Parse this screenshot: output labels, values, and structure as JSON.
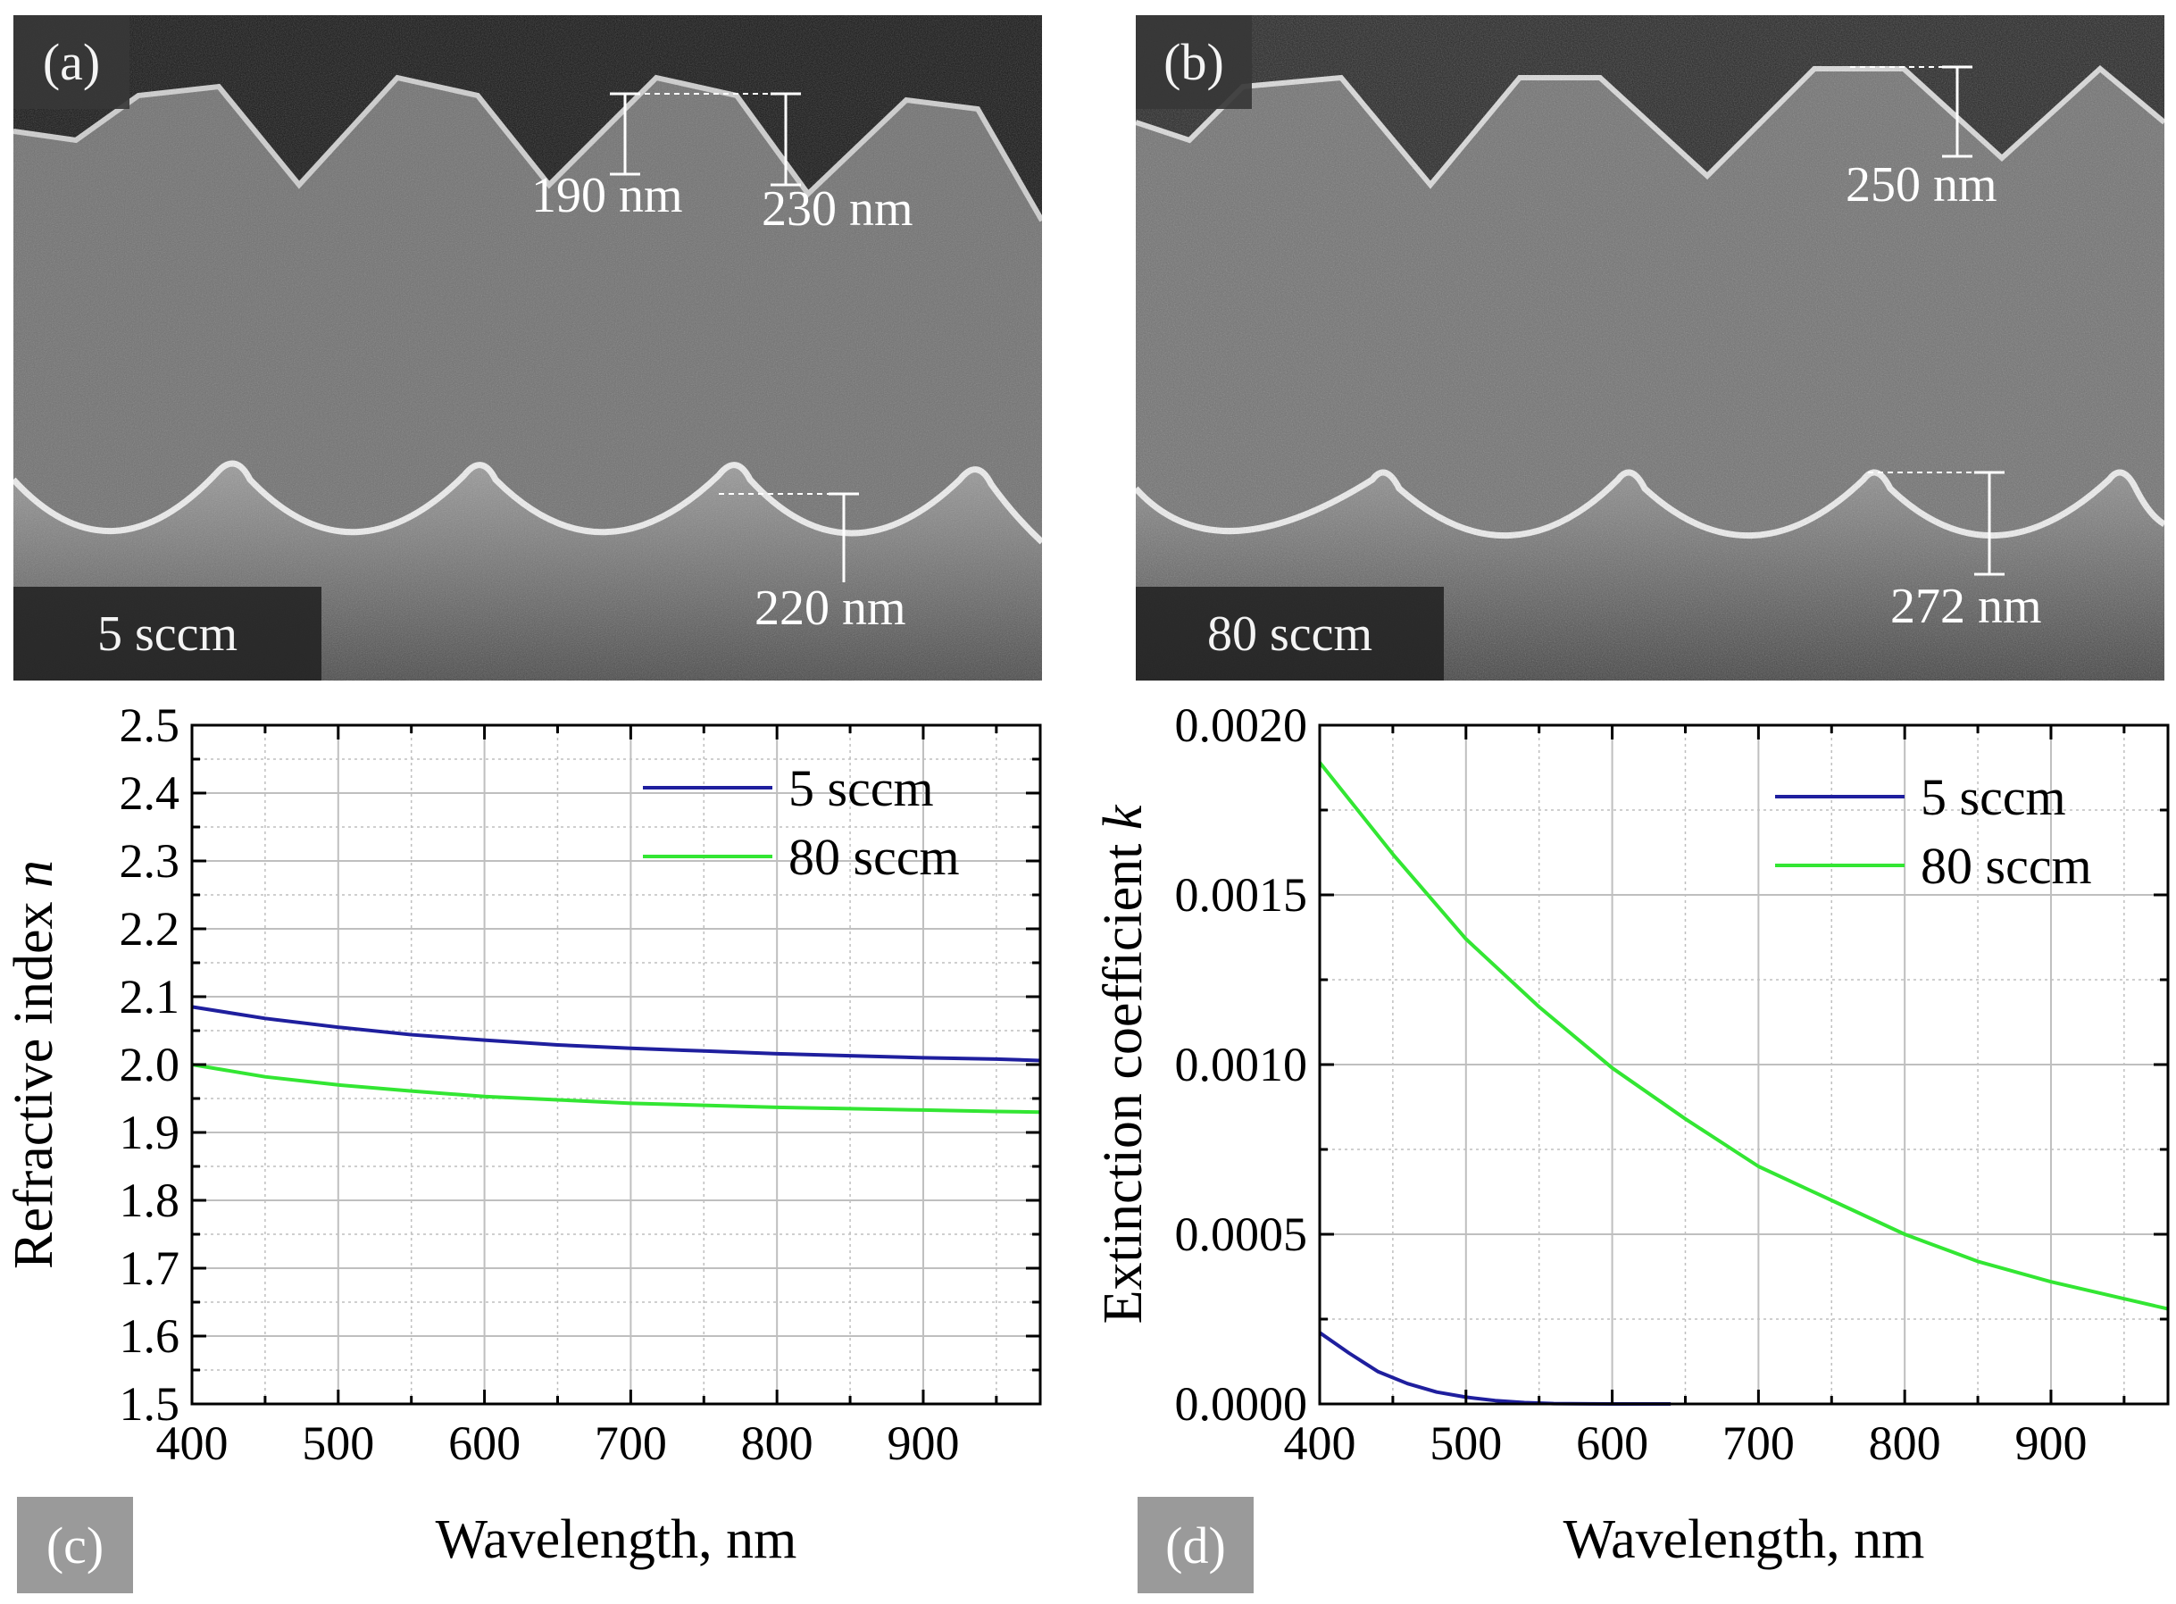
{
  "panels": {
    "a": {
      "label": "(a)",
      "scale_label": "5 sccm",
      "measurements": [
        "190 nm",
        "230 nm",
        "220 nm"
      ]
    },
    "b": {
      "label": "(b)",
      "scale_label": "80 sccm",
      "measurements": [
        "250 nm",
        "272 nm"
      ]
    },
    "c": {
      "label": "(c)"
    },
    "d": {
      "label": "(d)"
    }
  },
  "colors": {
    "series_5": "#1f1f9e",
    "series_80": "#33e633",
    "grid": "#bfbfbf"
  },
  "chart_data": [
    {
      "id": "c",
      "type": "line",
      "title": "",
      "xlabel": "Wavelength, nm",
      "ylabel": "Refractive index ",
      "ylabel_italic": "n",
      "xlim": [
        400,
        980
      ],
      "ylim": [
        1.5,
        2.5
      ],
      "xticks": [
        400,
        500,
        600,
        700,
        800,
        900
      ],
      "yticks": [
        1.5,
        1.6,
        1.7,
        1.8,
        1.9,
        2.0,
        2.1,
        2.2,
        2.3,
        2.4,
        2.5
      ],
      "ytick_labels": [
        "1.5",
        "1.6",
        "1.7",
        "1.8",
        "1.9",
        "2.0",
        "2.1",
        "2.2",
        "2.3",
        "2.4",
        "2.5"
      ],
      "legend_position": "top-right",
      "series": [
        {
          "name": "5 sccm",
          "color": "#1f1f9e",
          "x": [
            400,
            450,
            500,
            550,
            600,
            650,
            700,
            750,
            800,
            850,
            900,
            950,
            980
          ],
          "y": [
            2.085,
            2.068,
            2.055,
            2.044,
            2.036,
            2.029,
            2.024,
            2.02,
            2.016,
            2.013,
            2.01,
            2.008,
            2.006
          ]
        },
        {
          "name": "80 sccm",
          "color": "#33e633",
          "x": [
            400,
            450,
            500,
            550,
            600,
            650,
            700,
            750,
            800,
            850,
            900,
            950,
            980
          ],
          "y": [
            2.0,
            1.982,
            1.97,
            1.961,
            1.953,
            1.948,
            1.943,
            1.94,
            1.937,
            1.935,
            1.933,
            1.931,
            1.93
          ]
        }
      ]
    },
    {
      "id": "d",
      "type": "line",
      "title": "",
      "xlabel": "Wavelength, nm",
      "ylabel": "Extinction coefficient ",
      "ylabel_italic": "k",
      "xlim": [
        400,
        980
      ],
      "ylim": [
        0,
        0.002
      ],
      "xticks": [
        400,
        500,
        600,
        700,
        800,
        900
      ],
      "yticks": [
        0,
        0.0005,
        0.001,
        0.0015,
        0.002
      ],
      "ytick_labels": [
        "0.0000",
        "0.0005",
        "0.0010",
        "0.0015",
        "0.0020"
      ],
      "legend_position": "top-right",
      "series": [
        {
          "name": "5 sccm",
          "color": "#1f1f9e",
          "x": [
            400,
            420,
            440,
            460,
            480,
            500,
            520,
            540,
            560,
            600,
            640
          ],
          "y": [
            0.00021,
            0.00015,
            9.5e-05,
            6e-05,
            3.5e-05,
            2e-05,
            1e-05,
            4e-06,
            1e-06,
            0.0,
            0.0
          ]
        },
        {
          "name": "80 sccm",
          "color": "#33e633",
          "x": [
            400,
            450,
            500,
            550,
            600,
            650,
            700,
            750,
            800,
            850,
            900,
            950,
            980
          ],
          "y": [
            0.00189,
            0.00162,
            0.00137,
            0.00117,
            0.00099,
            0.00084,
            0.0007,
            0.0006,
            0.0005,
            0.00042,
            0.00036,
            0.00031,
            0.00028
          ]
        }
      ]
    }
  ]
}
